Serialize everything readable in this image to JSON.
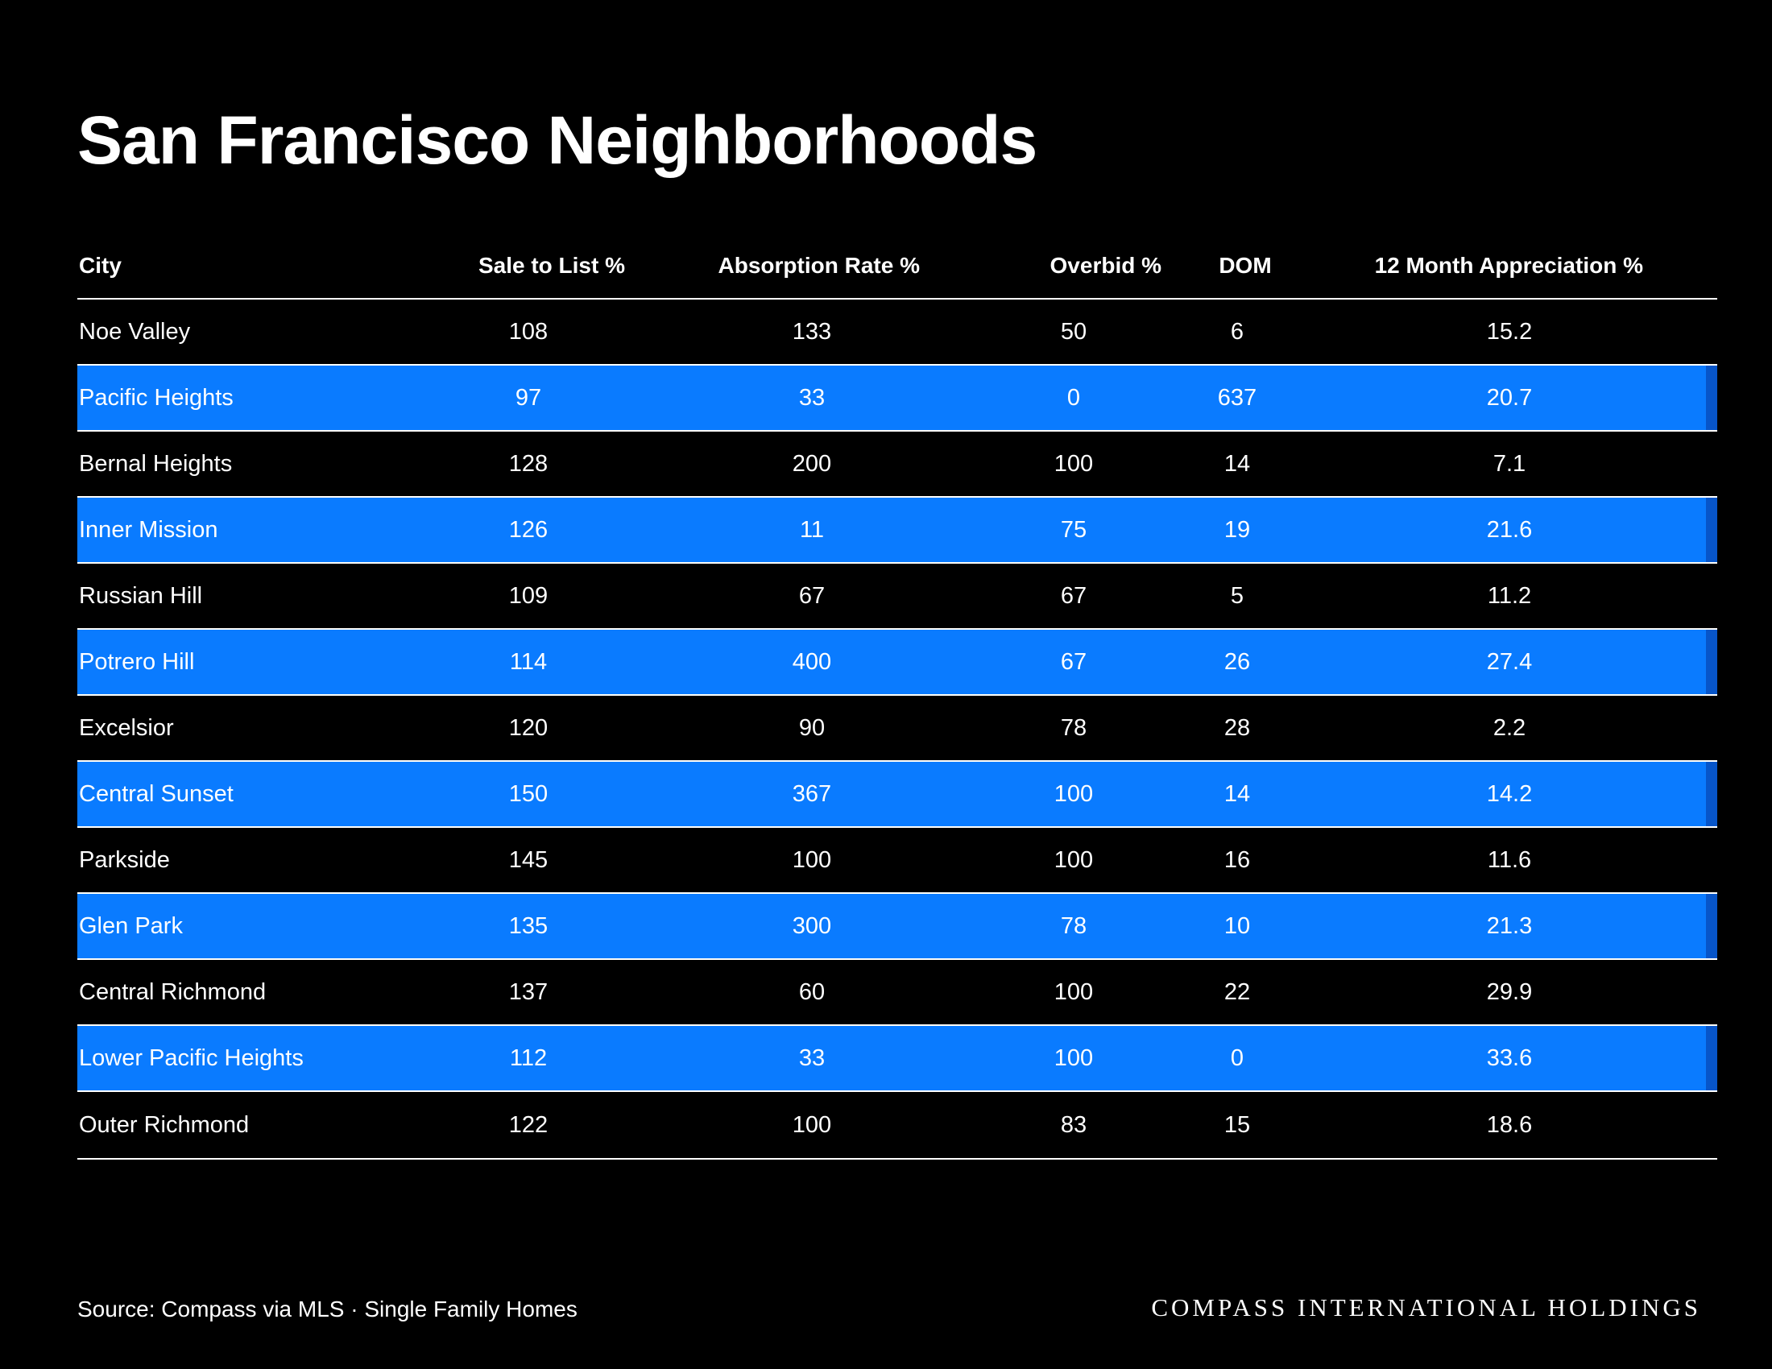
{
  "title": "San Francisco Neighborhoods",
  "footer": {
    "source": "Source: Compass via MLS · Single Family Homes",
    "brand": "COMPASS INTERNATIONAL HOLDINGS"
  },
  "colors": {
    "background": "#000000",
    "highlight_row": "#0a7bff",
    "highlight_edge": "#0755c9",
    "text": "#ffffff"
  },
  "chart_data": {
    "type": "table",
    "title": "San Francisco Neighborhoods",
    "columns": [
      "City",
      "Sale to List %",
      "Absorption Rate %",
      "Overbid %",
      "DOM",
      "12 Month Appreciation %"
    ],
    "rows": [
      {
        "city": "Noe Valley",
        "sale": "108",
        "abs": "133",
        "over": "50",
        "dom": "6",
        "app": "15.2",
        "highlight": false
      },
      {
        "city": "Pacific Heights",
        "sale": "97",
        "abs": "33",
        "over": "0",
        "dom": "637",
        "app": "20.7",
        "highlight": true
      },
      {
        "city": "Bernal Heights",
        "sale": "128",
        "abs": "200",
        "over": "100",
        "dom": "14",
        "app": "7.1",
        "highlight": false
      },
      {
        "city": "Inner Mission",
        "sale": "126",
        "abs": "11",
        "over": "75",
        "dom": "19",
        "app": "21.6",
        "highlight": true
      },
      {
        "city": "Russian Hill",
        "sale": "109",
        "abs": "67",
        "over": "67",
        "dom": "5",
        "app": "11.2",
        "highlight": false
      },
      {
        "city": "Potrero Hill",
        "sale": "114",
        "abs": "400",
        "over": "67",
        "dom": "26",
        "app": "27.4",
        "highlight": true
      },
      {
        "city": "Excelsior",
        "sale": "120",
        "abs": "90",
        "over": "78",
        "dom": "28",
        "app": "2.2",
        "highlight": false
      },
      {
        "city": "Central Sunset",
        "sale": "150",
        "abs": "367",
        "over": "100",
        "dom": "14",
        "app": "14.2",
        "highlight": true
      },
      {
        "city": "Parkside",
        "sale": "145",
        "abs": "100",
        "over": "100",
        "dom": "16",
        "app": "11.6",
        "highlight": false
      },
      {
        "city": "Glen Park",
        "sale": "135",
        "abs": "300",
        "over": "78",
        "dom": "10",
        "app": "21.3",
        "highlight": true
      },
      {
        "city": "Central Richmond",
        "sale": "137",
        "abs": "60",
        "over": "100",
        "dom": "22",
        "app": "29.9",
        "highlight": false
      },
      {
        "city": "Lower Pacific Heights",
        "sale": "112",
        "abs": "33",
        "over": "100",
        "dom": "0",
        "app": "33.6",
        "highlight": true
      },
      {
        "city": "Outer Richmond",
        "sale": "122",
        "abs": "100",
        "over": "83",
        "dom": "15",
        "app": "18.6",
        "highlight": false
      }
    ]
  }
}
